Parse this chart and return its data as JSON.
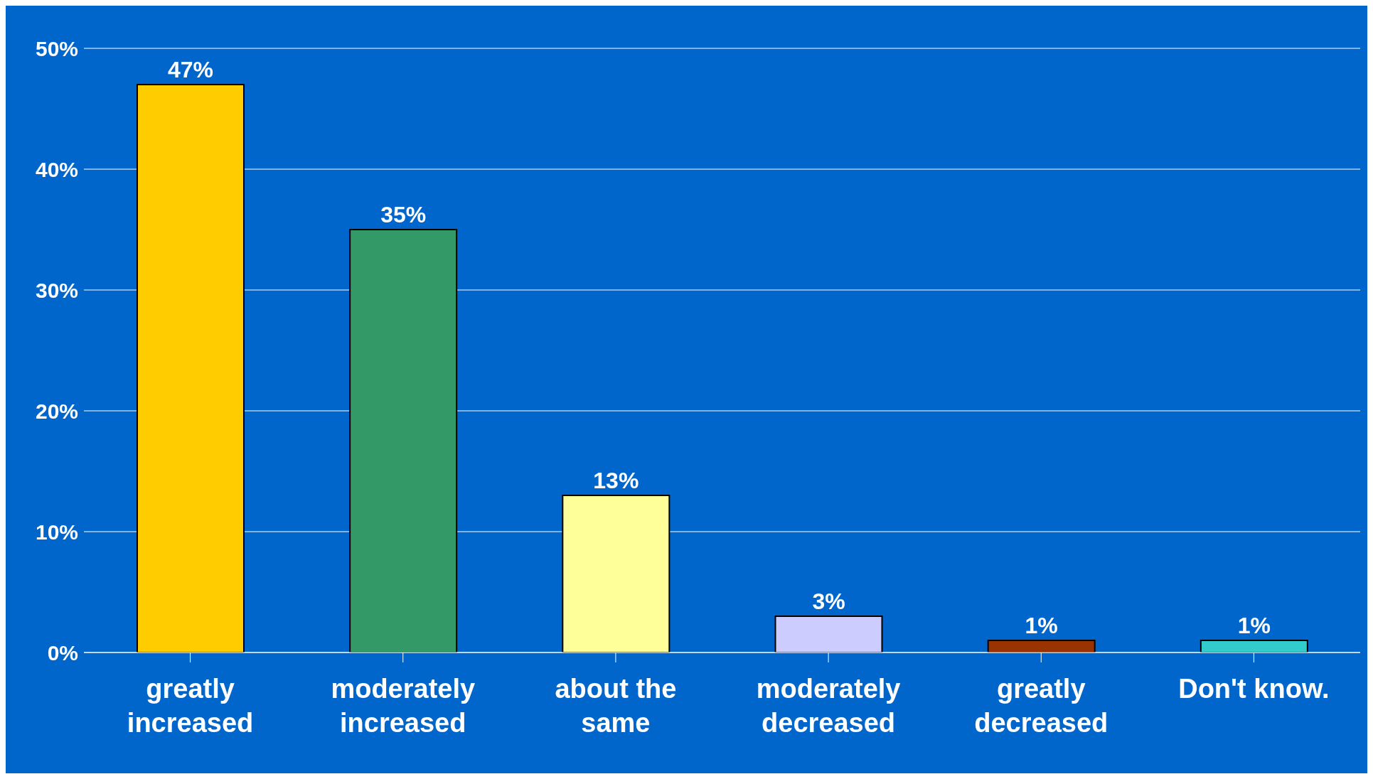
{
  "chart_data": {
    "type": "bar",
    "categories": [
      "greatly increased",
      "moderately increased",
      "about the same",
      "moderately decreased",
      "greatly decreased",
      "Don't know."
    ],
    "values": [
      47,
      35,
      13,
      3,
      1,
      1
    ],
    "colors": [
      "#ffcc00",
      "#339966",
      "#ffff99",
      "#ccccff",
      "#993300",
      "#33cccc"
    ],
    "value_labels": [
      "47%",
      "35%",
      "13%",
      "3%",
      "1%",
      "1%"
    ],
    "ylim": [
      0,
      50
    ],
    "yticks": [
      {
        "value": 0,
        "label": "0%"
      },
      {
        "value": 10,
        "label": "10%"
      },
      {
        "value": 20,
        "label": "20%"
      },
      {
        "value": 30,
        "label": "30%"
      },
      {
        "value": 40,
        "label": "40%"
      },
      {
        "value": 50,
        "label": "50%"
      }
    ],
    "grid": "y",
    "legend": false
  }
}
